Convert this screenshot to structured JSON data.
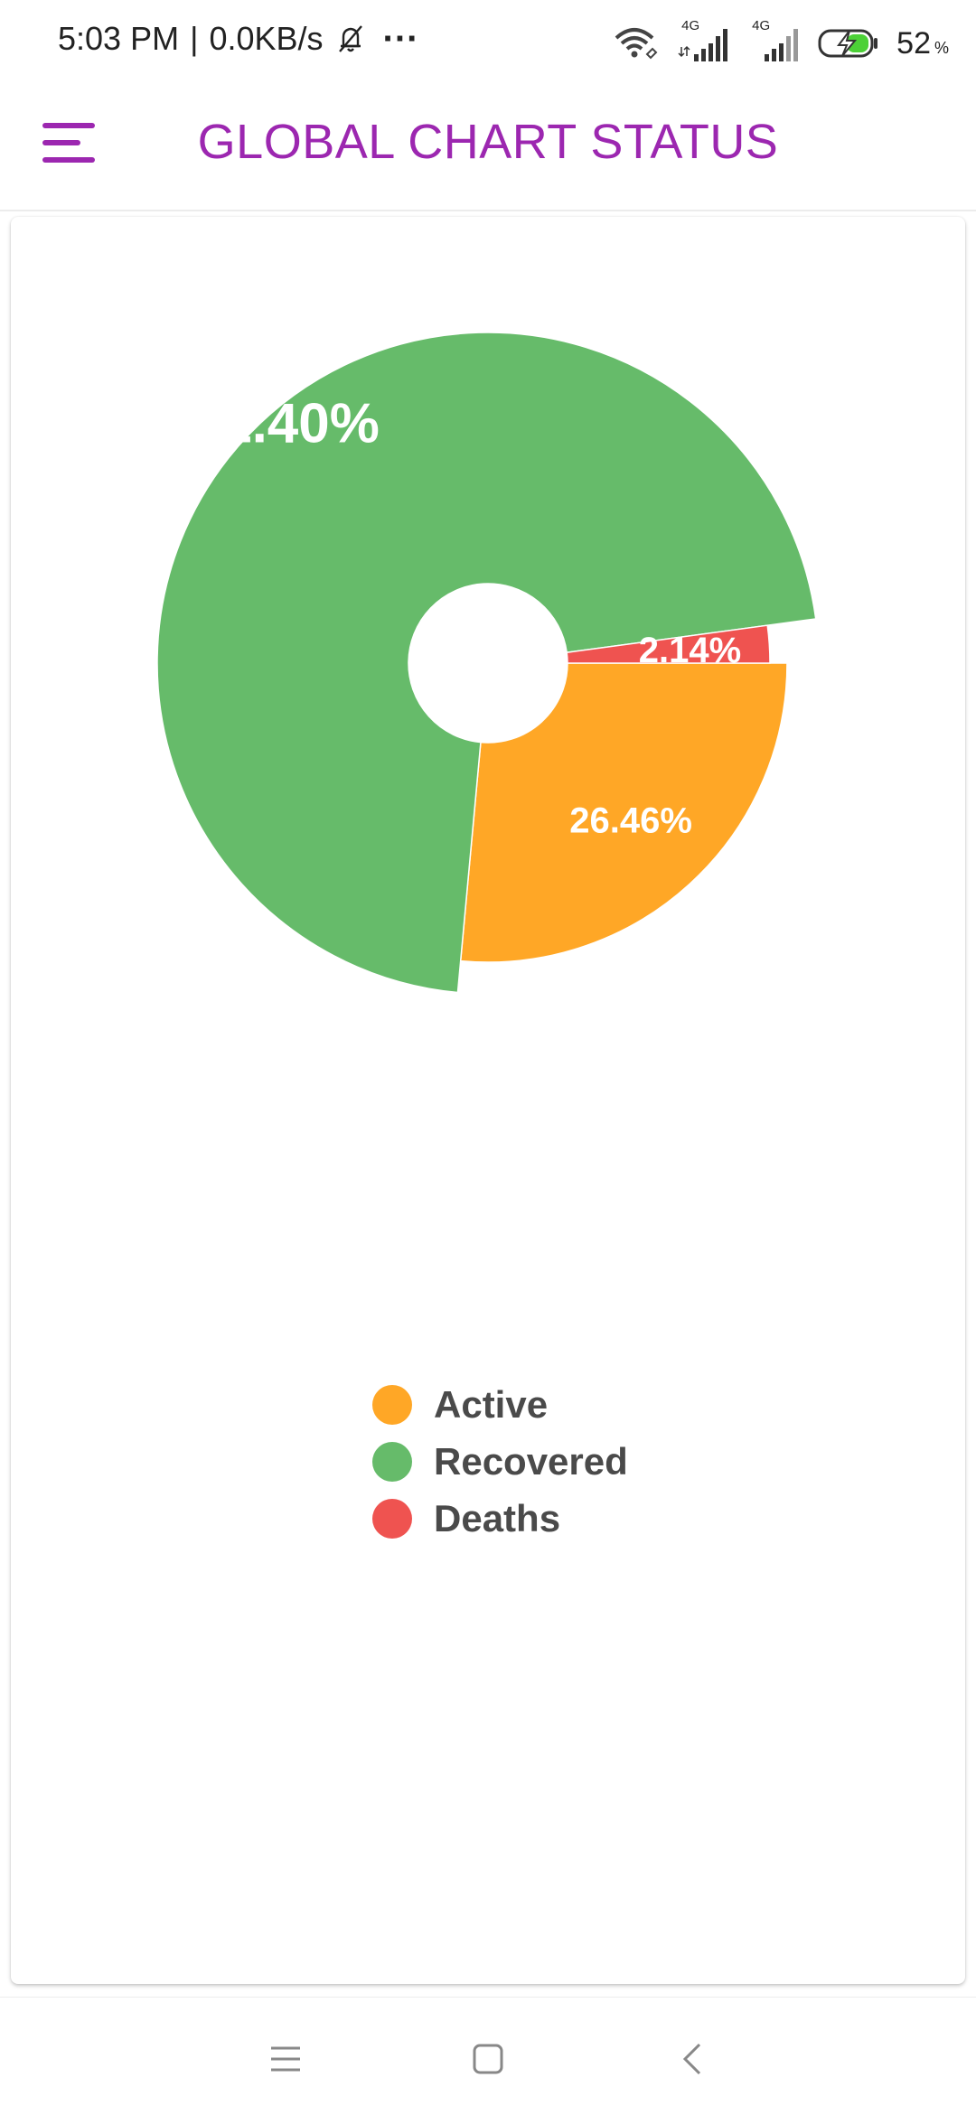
{
  "status_bar": {
    "time": "5:03 PM",
    "separator": "|",
    "speed": "0.0KB/s",
    "more": "···",
    "network_label": "4G",
    "battery_percent": "52",
    "battery_unit": "%",
    "icons": [
      "bell-off-icon",
      "wifi-icon",
      "signal-icon",
      "signal-icon",
      "battery-charging-icon"
    ]
  },
  "app_bar": {
    "menu_icon": "menu-icon",
    "title": "GLOBAL CHART STATUS",
    "title_color": "#9c27b0"
  },
  "chart_data": {
    "type": "pie",
    "style": "donut with radius proportional to value",
    "categories": [
      "Active",
      "Recovered",
      "Deaths"
    ],
    "values": [
      26.46,
      71.4,
      2.14
    ],
    "labels": [
      "26.46%",
      "71.40%",
      "2.14%"
    ],
    "colors": [
      "#ffa726",
      "#66bb6a",
      "#ef5350"
    ],
    "legend_position": "bottom-center"
  },
  "nav_bar": {
    "icons": [
      "recent-apps-icon",
      "home-icon",
      "back-icon"
    ]
  }
}
